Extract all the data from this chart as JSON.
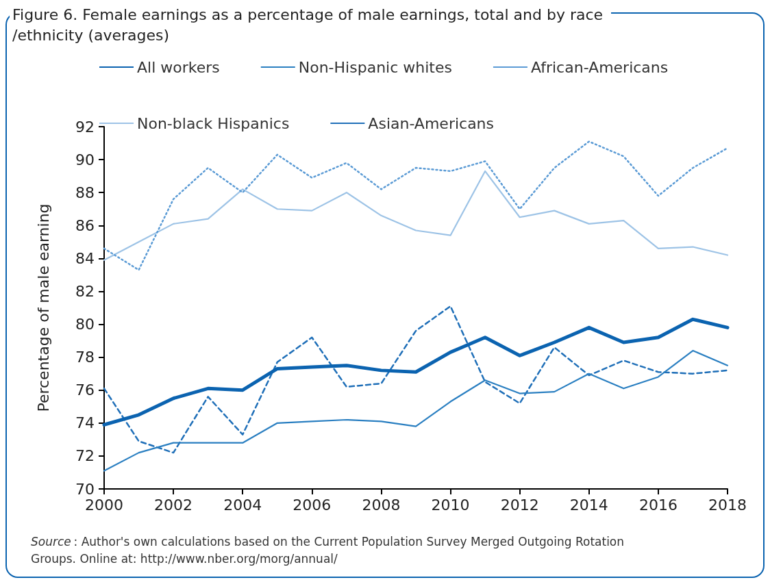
{
  "chart_data": {
    "type": "line",
    "title": "Figure 6. Female earnings as a percentage of male earnings, total and by race/ethnicity (averages)",
    "ylabel": "Percentage of male earning",
    "x": [
      2000,
      2001,
      2002,
      2003,
      2004,
      2005,
      2006,
      2007,
      2008,
      2009,
      2010,
      2011,
      2012,
      2013,
      2014,
      2015,
      2016,
      2017,
      2018
    ],
    "series": [
      {
        "name": "All workers",
        "color": "#0b63b0",
        "line_style": "solid",
        "values": [
          73.9,
          74.5,
          75.5,
          76.1,
          76.0,
          77.3,
          77.4,
          77.5,
          77.2,
          77.1,
          78.3,
          79.2,
          78.1,
          78.9,
          79.8,
          78.9,
          79.2,
          80.3,
          79.8
        ]
      },
      {
        "name": "Non-Hispanic whites",
        "color": "#2a7fc1",
        "line_style": "solid",
        "values": [
          71.1,
          72.2,
          72.8,
          72.8,
          72.8,
          74.0,
          74.1,
          74.2,
          74.1,
          73.8,
          75.3,
          76.6,
          75.8,
          75.9,
          77.0,
          76.1,
          76.8,
          78.4,
          77.5
        ]
      },
      {
        "name": "African-Americans",
        "color": "#5b9bd5",
        "line_style": "dotted",
        "values": [
          84.6,
          83.3,
          87.6,
          89.5,
          88.0,
          90.3,
          88.9,
          89.8,
          88.2,
          89.5,
          89.3,
          89.9,
          87.0,
          89.5,
          91.1,
          90.2,
          87.8,
          89.5,
          90.7
        ]
      },
      {
        "name": "Non-black Hispanics",
        "color": "#9dc3e6",
        "line_style": "solid",
        "values": [
          83.9,
          85.0,
          86.1,
          86.4,
          88.2,
          87.0,
          86.9,
          88.0,
          86.6,
          85.7,
          85.4,
          89.3,
          86.5,
          86.9,
          86.1,
          86.3,
          84.6,
          84.7,
          84.2
        ]
      },
      {
        "name": "Asian-Americans",
        "color": "#1f6fb8",
        "line_style": "dashed",
        "values": [
          76.1,
          72.9,
          72.2,
          75.6,
          73.3,
          77.7,
          79.2,
          76.2,
          76.4,
          79.6,
          81.1,
          76.5,
          75.2,
          78.6,
          76.9,
          77.8,
          77.1,
          77.0,
          77.2
        ]
      }
    ],
    "xlim": [
      2000,
      2018
    ],
    "xticks": [
      2000,
      2002,
      2004,
      2006,
      2008,
      2010,
      2012,
      2014,
      2016,
      2018
    ],
    "ylim": [
      70,
      92
    ],
    "yticks": [
      70,
      72,
      74,
      76,
      78,
      80,
      82,
      84,
      86,
      88,
      90,
      92
    ],
    "grid": false,
    "legend": "top",
    "marker": "none",
    "annotations": [
      "Source: Author's own calculations based on the Current Population Survey Merged Outgoing Rotation Groups. Online at: http://www.nber.org/morg/annual/"
    ]
  }
}
